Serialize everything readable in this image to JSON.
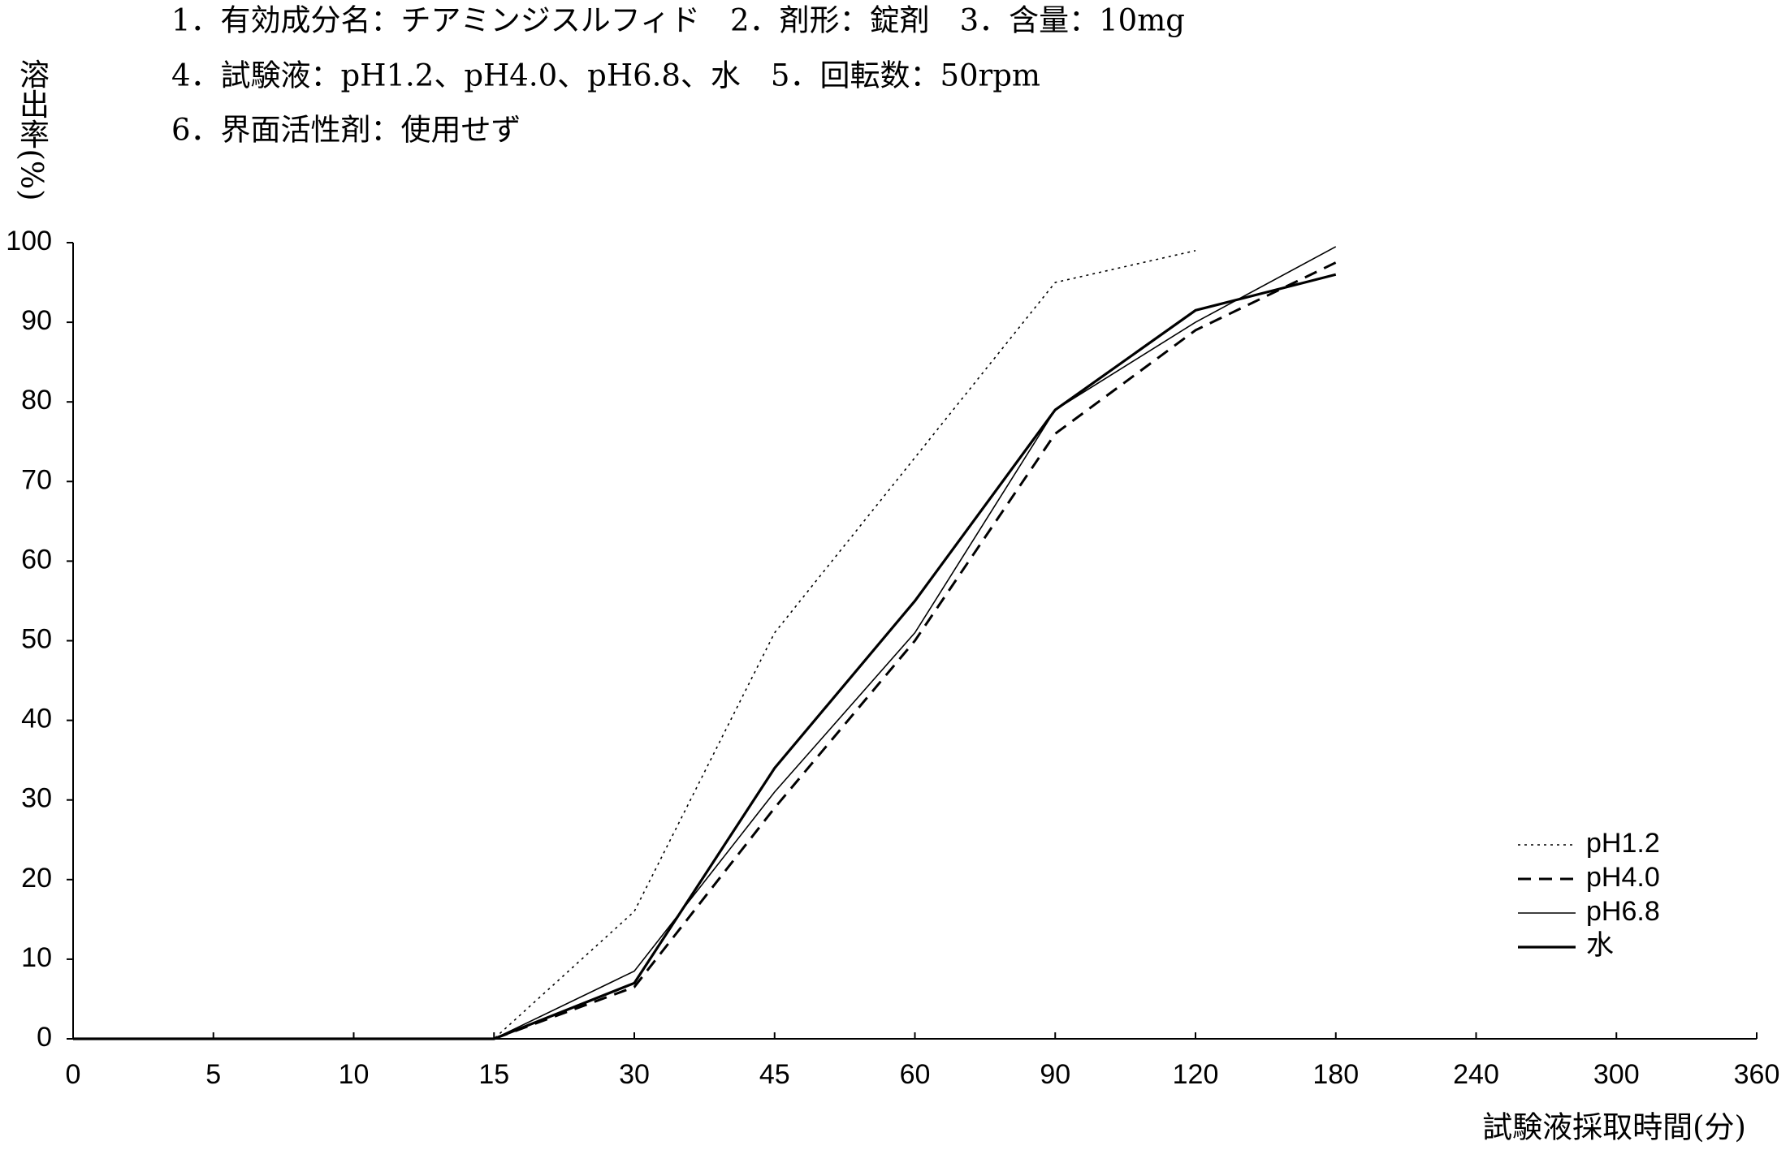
{
  "chart_data": {
    "type": "line",
    "notes": [
      "1．有効成分名：チアミンジスルフィド　2．剤形：錠剤　3．含量：10mg",
      "4．試験液：pH1.2、pH4.0、pH6.8、水　5．回転数：50rpm",
      "6．界面活性剤：使用せず"
    ],
    "y_label": "溶出率(%)",
    "x_label": "試験液採取時間(分)",
    "categories": [
      "0",
      "5",
      "10",
      "15",
      "30",
      "45",
      "60",
      "90",
      "120",
      "180",
      "240",
      "300",
      "360"
    ],
    "series": [
      {
        "name": "pH1.2",
        "color": "#000000",
        "line_style": "dotted",
        "values": [
          0,
          0,
          0,
          0,
          16,
          51,
          73,
          95,
          99,
          null,
          null,
          null,
          null
        ]
      },
      {
        "name": "pH4.0",
        "color": "#000000",
        "line_style": "dashed",
        "values": [
          0,
          0,
          0,
          0,
          6.5,
          29,
          50,
          76,
          89,
          97.5,
          null,
          null,
          null
        ]
      },
      {
        "name": "pH6.8",
        "color": "#000000",
        "line_style": "thin",
        "values": [
          0,
          0,
          0,
          0,
          8.5,
          31,
          51,
          79,
          90,
          99.5,
          null,
          null,
          null
        ]
      },
      {
        "name": "水",
        "color": "#000000",
        "line_style": "solid",
        "values": [
          0,
          0,
          0,
          0,
          7,
          34,
          55,
          79,
          91.5,
          96,
          null,
          null,
          null
        ]
      }
    ],
    "ylim": [
      0,
      100
    ],
    "yticks": [
      0,
      10,
      20,
      30,
      40,
      50,
      60,
      70,
      80,
      90,
      100
    ],
    "grid": false,
    "legend": "lower right"
  }
}
